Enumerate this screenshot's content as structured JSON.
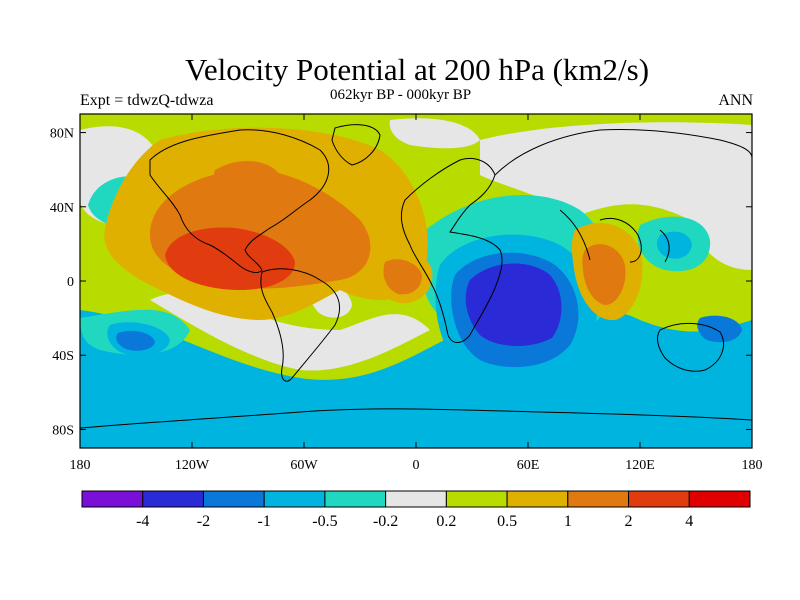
{
  "title": "Velocity Potential at 200 hPa (km2/s)",
  "left_label": "Expt = tdwzQ-tdwza",
  "center_label": "062kyr BP - 000kyr BP",
  "right_label": "ANN",
  "lat_ticks": [
    "80N",
    "40N",
    "0",
    "40S",
    "80S"
  ],
  "lon_ticks": [
    "180",
    "120W",
    "60W",
    "0",
    "60E",
    "120E",
    "180"
  ],
  "colorbar": {
    "colors": [
      "#7a0fd8",
      "#2a2ad6",
      "#0a78d8",
      "#00b4e0",
      "#20d8c0",
      "#e6e6e6",
      "#b8dc00",
      "#e0b000",
      "#e07a10",
      "#e03c10",
      "#e00000"
    ],
    "labels": [
      "-4",
      "-2",
      "-1",
      "-0.5",
      "-0.2",
      "0.2",
      "0.5",
      "1",
      "2",
      "4"
    ]
  },
  "map_fill_colors": {
    "background": "#b8dc00",
    "near_zero": "#e6e6e6",
    "weak_negative": "#20d8c0",
    "negative": "#00b4e0",
    "strong_negative": "#0a78d8",
    "very_strong_negative": "#2a2ad6",
    "positive_0_5": "#e0b000",
    "positive_1": "#e07a10",
    "positive_2": "#e03c10"
  }
}
